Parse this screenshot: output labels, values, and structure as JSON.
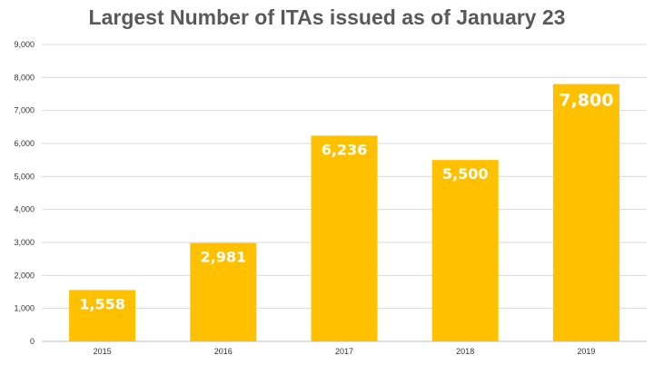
{
  "chart_data": {
    "type": "bar",
    "title": "Largest Number of ITAs issued as of January 23",
    "xlabel": "",
    "ylabel": "",
    "categories": [
      "2015",
      "2016",
      "2017",
      "2018",
      "2019"
    ],
    "values": [
      1558,
      2981,
      6236,
      5500,
      7800
    ],
    "value_labels": [
      "1,558",
      "2,981",
      "6,236",
      "5,500",
      "7,800"
    ],
    "ylim": [
      0,
      9000
    ],
    "yticks": [
      0,
      1000,
      2000,
      3000,
      4000,
      5000,
      6000,
      7000,
      8000,
      9000
    ],
    "ytick_labels": [
      "0",
      "1,000",
      "2,000",
      "3,000",
      "4,000",
      "5,000",
      "6,000",
      "7,000",
      "8,000",
      "9,000"
    ],
    "grid": true,
    "legend": "none",
    "bar_color": "#FFC000",
    "label_color": "#FFFFFF",
    "grid_color": "#D9D9D9"
  }
}
